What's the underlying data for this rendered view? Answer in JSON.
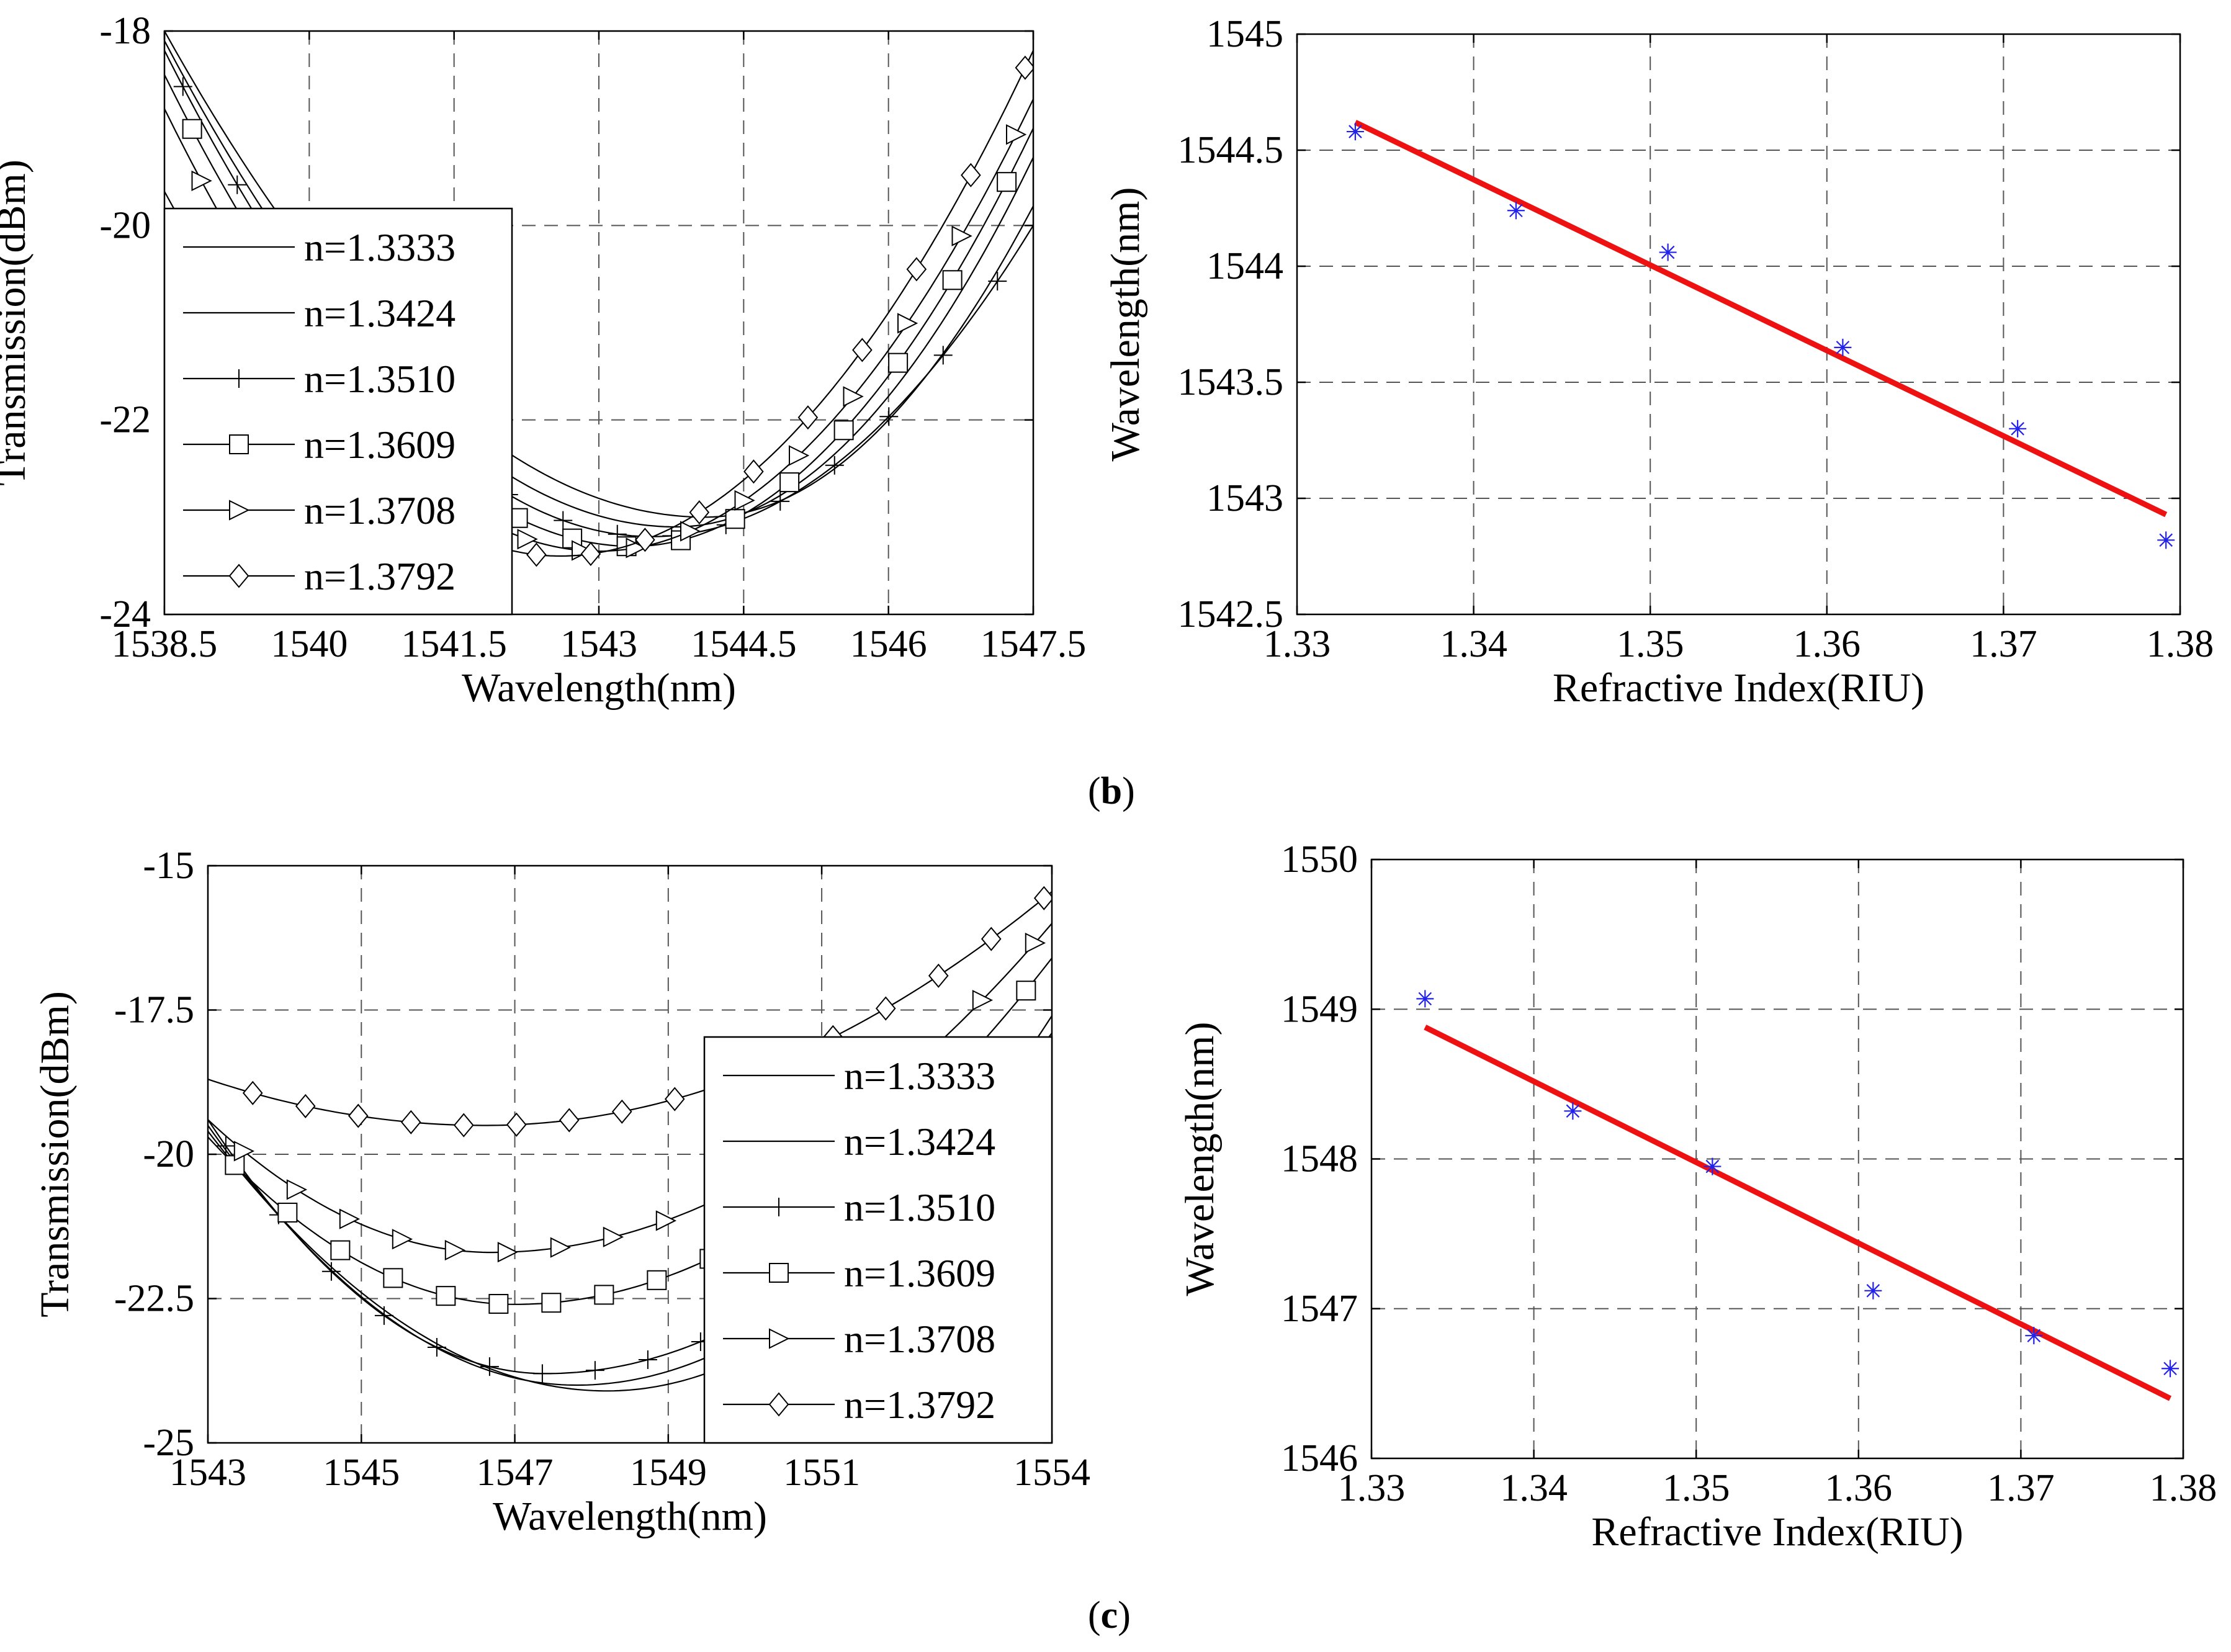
{
  "captions": {
    "b": "b",
    "c": "c"
  },
  "legend_labels": [
    "n=1.3333",
    "n=1.3424",
    "n=1.3510",
    "n=1.3609",
    "n=1.3708",
    "n=1.3792"
  ],
  "chart_data": [
    {
      "id": "b-transmission",
      "type": "line",
      "xlabel": "Wavelength(nm)",
      "ylabel": "Transmission(dBm)",
      "xlim": [
        1538.5,
        1547.5
      ],
      "ylim": [
        -24,
        -18
      ],
      "xticks": [
        1538.5,
        1540,
        1541.5,
        1543,
        1544.5,
        1546,
        1547.5
      ],
      "xtick_labels": [
        "1538.5",
        "1540",
        "1541.5",
        "1543",
        "1544.5",
        "1546",
        "1547.5"
      ],
      "yticks": [
        -24,
        -22,
        -20,
        -18
      ],
      "ytick_labels": [
        "-24",
        "-22",
        "-20",
        "-18"
      ],
      "grid": true,
      "legend_position": "lower-left",
      "series": [
        {
          "name": "n=1.3333",
          "marker": "none",
          "center": 1544.1,
          "min": -23.0,
          "left": -18.0,
          "right": -19.8
        },
        {
          "name": "n=1.3424",
          "marker": "none",
          "center": 1543.8,
          "min": -23.1,
          "left": -18.1,
          "right": -19.3
        },
        {
          "name": "n=1.3510",
          "marker": "plus",
          "center": 1543.55,
          "min": -23.2,
          "left": -18.2,
          "right": -20.0
        },
        {
          "name": "n=1.3609",
          "marker": "square",
          "center": 1543.35,
          "min": -23.3,
          "left": -18.45,
          "right": -19.0
        },
        {
          "name": "n=1.3708",
          "marker": "triangle-right",
          "center": 1543.0,
          "min": -23.35,
          "left": -18.8,
          "right": -18.7
        },
        {
          "name": "n=1.3792",
          "marker": "diamond",
          "center": 1542.6,
          "min": -23.4,
          "left": -19.65,
          "right": -18.2
        }
      ]
    },
    {
      "id": "b-fit",
      "type": "scatter",
      "xlabel": "Refractive Index(RIU)",
      "ylabel": "Wavelength(nm)",
      "xlim": [
        1.33,
        1.38
      ],
      "ylim": [
        1542.5,
        1545
      ],
      "xticks": [
        1.33,
        1.34,
        1.35,
        1.36,
        1.37,
        1.38
      ],
      "xtick_labels": [
        "1.33",
        "1.34",
        "1.35",
        "1.36",
        "1.37",
        "1.38"
      ],
      "yticks": [
        1542.5,
        1543,
        1543.5,
        1544,
        1544.5,
        1545
      ],
      "ytick_labels": [
        "1542.5",
        "1543",
        "1543.5",
        "1544",
        "1544.5",
        "1545"
      ],
      "grid": true,
      "points": {
        "x": [
          1.3333,
          1.3424,
          1.351,
          1.3609,
          1.3708,
          1.3792
        ],
        "y": [
          1544.58,
          1544.24,
          1544.06,
          1543.65,
          1543.3,
          1542.82
        ]
      },
      "fit": {
        "x": [
          1.3333,
          1.3792
        ],
        "y": [
          1544.62,
          1542.93
        ]
      }
    },
    {
      "id": "c-transmission",
      "type": "line",
      "xlabel": "Wavelength(nm)",
      "ylabel": "Transmission(dBm)",
      "xlim": [
        1543,
        1554
      ],
      "ylim": [
        -25,
        -15
      ],
      "xticks": [
        1543,
        1545,
        1547,
        1549,
        1551,
        1554
      ],
      "xtick_labels": [
        "1543",
        "1545",
        "1547",
        "1549",
        "1551",
        "1554"
      ],
      "yticks": [
        -25,
        -22.5,
        -20,
        -17.5,
        -15
      ],
      "ytick_labels": [
        "-25",
        "-22.5",
        "-20",
        "-17.5",
        "-15"
      ],
      "grid": true,
      "legend_position": "lower-right",
      "series": [
        {
          "name": "n=1.3333",
          "marker": "none",
          "center": 1548.2,
          "min": -24.1,
          "left": -19.6,
          "right": -18.0
        },
        {
          "name": "n=1.3424",
          "marker": "none",
          "center": 1547.8,
          "min": -24.0,
          "left": -19.5,
          "right": -17.6
        },
        {
          "name": "n=1.3510",
          "marker": "plus",
          "center": 1547.4,
          "min": -23.8,
          "left": -19.4,
          "right": -17.9
        },
        {
          "name": "n=1.3609",
          "marker": "square",
          "center": 1547.0,
          "min": -22.6,
          "left": -19.7,
          "right": -16.6
        },
        {
          "name": "n=1.3708",
          "marker": "triangle-right",
          "center": 1546.7,
          "min": -21.7,
          "left": -19.4,
          "right": -16.0
        },
        {
          "name": "n=1.3792",
          "marker": "diamond",
          "center": 1546.6,
          "min": -19.5,
          "left": -18.7,
          "right": -15.45
        }
      ]
    },
    {
      "id": "c-fit",
      "type": "scatter",
      "xlabel": "Refractive Index(RIU)",
      "ylabel": "Wavelength(nm)",
      "xlim": [
        1.33,
        1.38
      ],
      "ylim": [
        1546,
        1550
      ],
      "xticks": [
        1.33,
        1.34,
        1.35,
        1.36,
        1.37,
        1.38
      ],
      "xtick_labels": [
        "1.33",
        "1.34",
        "1.35",
        "1.36",
        "1.37",
        "1.38"
      ],
      "yticks": [
        1546,
        1547,
        1548,
        1549,
        1550
      ],
      "ytick_labels": [
        "1546",
        "1547",
        "1548",
        "1549",
        "1550"
      ],
      "grid": true,
      "points": {
        "x": [
          1.3333,
          1.3424,
          1.351,
          1.3609,
          1.3708,
          1.3792
        ],
        "y": [
          1549.07,
          1548.32,
          1547.95,
          1547.12,
          1546.82,
          1546.6
        ]
      },
      "fit": {
        "x": [
          1.3333,
          1.3792
        ],
        "y": [
          1548.88,
          1546.4
        ]
      }
    }
  ]
}
